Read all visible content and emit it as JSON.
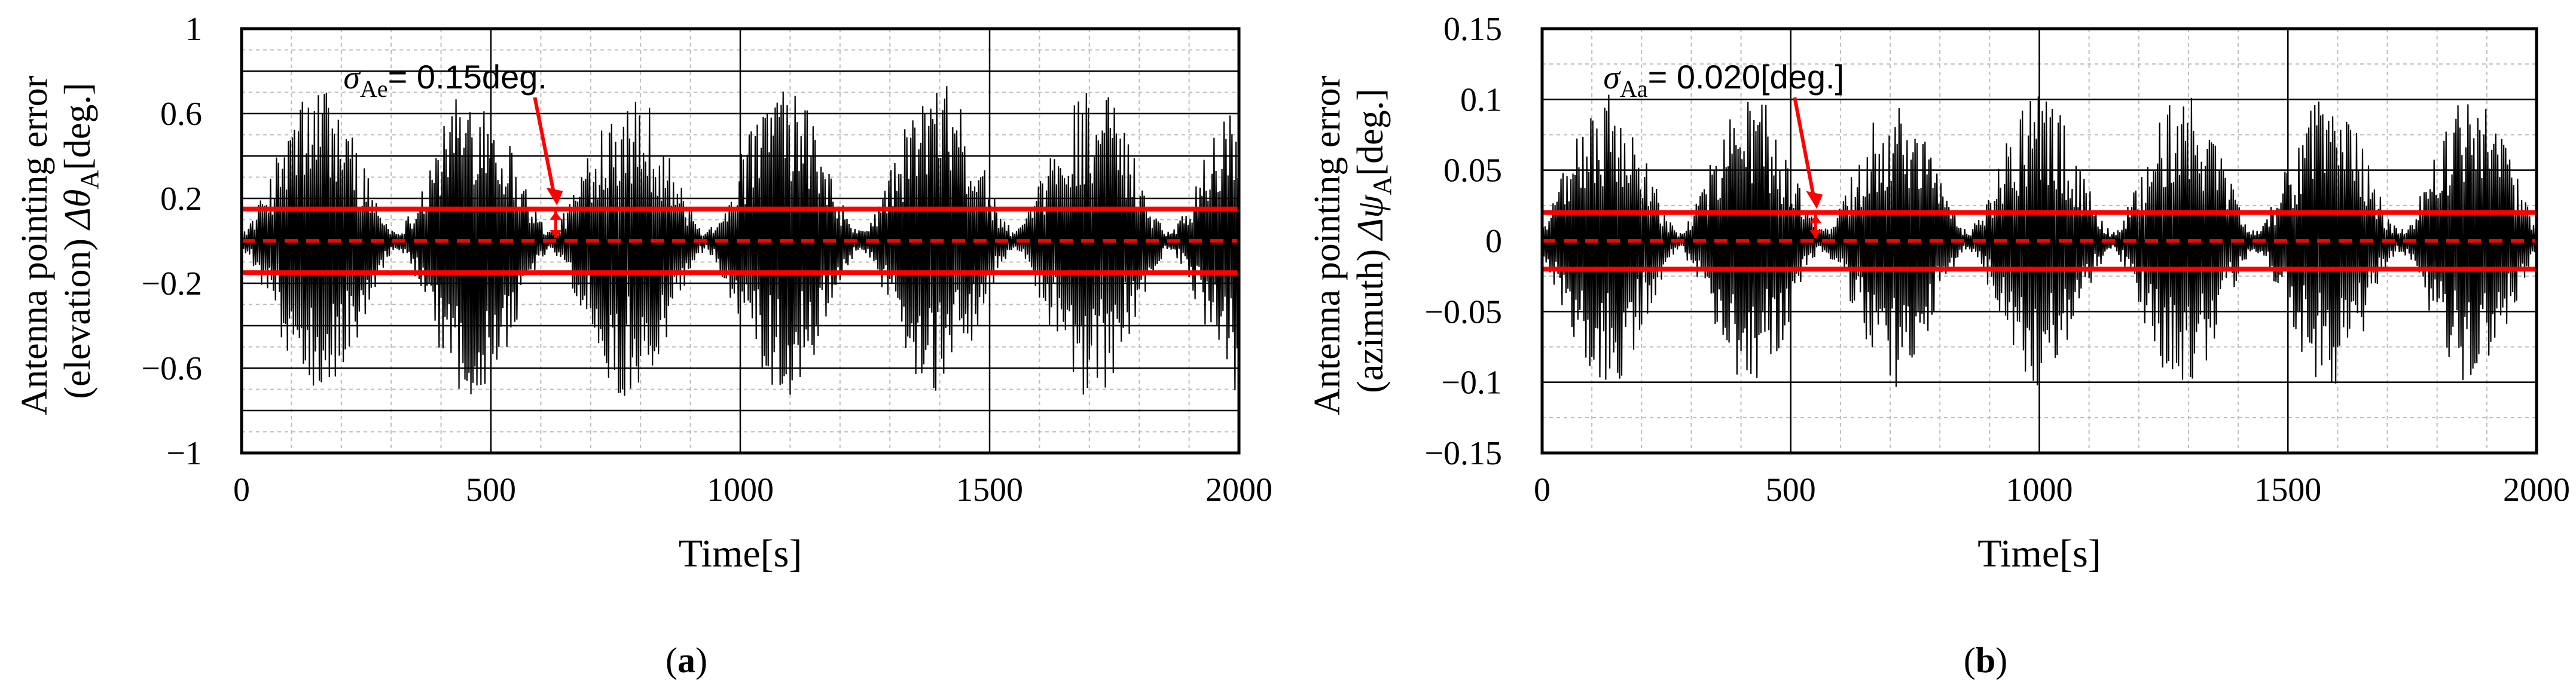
{
  "colors": {
    "signal": "#000000",
    "sigma_band": "#ff0000",
    "grid_major": "#000000",
    "grid_minor": "#bdbdbd",
    "background": "#ffffff"
  },
  "chart_data": [
    {
      "id": "a",
      "type": "line",
      "panel_label": "a",
      "xlabel": "Time[s]",
      "ylabel_line1": "Antenna pointing error",
      "ylabel_line2_prefix": "(elevation) ",
      "ylabel_symbol": "Δθ",
      "ylabel_subscript": "A",
      "ylabel_unit": "[deg.]",
      "xlim": [
        0,
        2000
      ],
      "ylim": [
        -1,
        1
      ],
      "xticks": [
        0,
        500,
        1000,
        1500,
        2000
      ],
      "xtick_labels": [
        "0",
        "500",
        "1000",
        "1500",
        "2000"
      ],
      "yticks": [
        -1,
        -0.6,
        -0.2,
        0.2,
        0.6,
        1
      ],
      "ytick_labels": [
        "−1",
        "−0.6",
        "−0.2",
        "0.2",
        "0.6",
        "1"
      ],
      "grid": true,
      "annotation": {
        "symbol": "σ",
        "subscript": "Ae",
        "text": "= 0.15deg.",
        "value": 0.15,
        "x": 630
      },
      "sigma": 0.15,
      "mean": 0,
      "signal": {
        "description_free": true,
        "period_s": 310,
        "envelope_max": 0.75,
        "envelope_min": 0.05,
        "phase_s": 155,
        "sample_step_s": 2
      }
    },
    {
      "id": "b",
      "type": "line",
      "panel_label": "b",
      "xlabel": "Time[s]",
      "ylabel_line1": "Antenna pointing error",
      "ylabel_line2_prefix": "(azimuth) ",
      "ylabel_symbol": "Δψ",
      "ylabel_subscript": "A",
      "ylabel_unit": "[deg.]",
      "xlim": [
        0,
        2000
      ],
      "ylim": [
        -0.15,
        0.15
      ],
      "xticks": [
        0,
        500,
        1000,
        1500,
        2000
      ],
      "xtick_labels": [
        "0",
        "500",
        "1000",
        "1500",
        "2000"
      ],
      "yticks": [
        -0.15,
        -0.1,
        -0.05,
        0,
        0.05,
        0.1,
        0.15
      ],
      "ytick_labels": [
        "−0.15",
        "−0.1",
        "−0.05",
        "0",
        "0.05",
        "0.1",
        "0.15"
      ],
      "grid": true,
      "annotation": {
        "symbol": "σ",
        "subscript": "Aa",
        "text": "= 0.020[deg.]",
        "value": 0.02,
        "x": 550
      },
      "sigma": 0.02,
      "mean": 0,
      "signal": {
        "period_s": 290,
        "envelope_max": 0.105,
        "envelope_min": 0.008,
        "phase_s": 130,
        "sample_step_s": 2
      }
    }
  ]
}
